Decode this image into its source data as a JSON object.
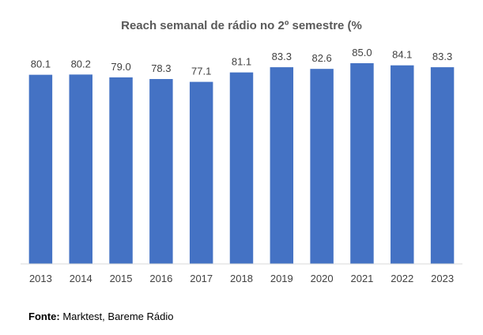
{
  "chart_data": {
    "type": "bar",
    "title": "Reach semanal de rádio no 2º semestre (%",
    "categories": [
      "2013",
      "2014",
      "2015",
      "2016",
      "2017",
      "2018",
      "2019",
      "2020",
      "2021",
      "2022",
      "2023"
    ],
    "values": [
      80.1,
      80.2,
      79.0,
      78.3,
      77.1,
      81.1,
      83.3,
      82.6,
      85.0,
      84.1,
      83.3
    ],
    "value_labels": [
      "80.1",
      "80.2",
      "79.0",
      "78.3",
      "77.1",
      "81.1",
      "83.3",
      "82.6",
      "85.0",
      "84.1",
      "83.3"
    ],
    "xlabel": "",
    "ylabel": "",
    "ylim": [
      0,
      85
    ],
    "grid": false,
    "legend": "none",
    "bar_color": "#4472C4",
    "label_color": "#404040"
  },
  "source": {
    "prefix": "Fonte:",
    "text": " Marktest, Bareme Rádio"
  }
}
